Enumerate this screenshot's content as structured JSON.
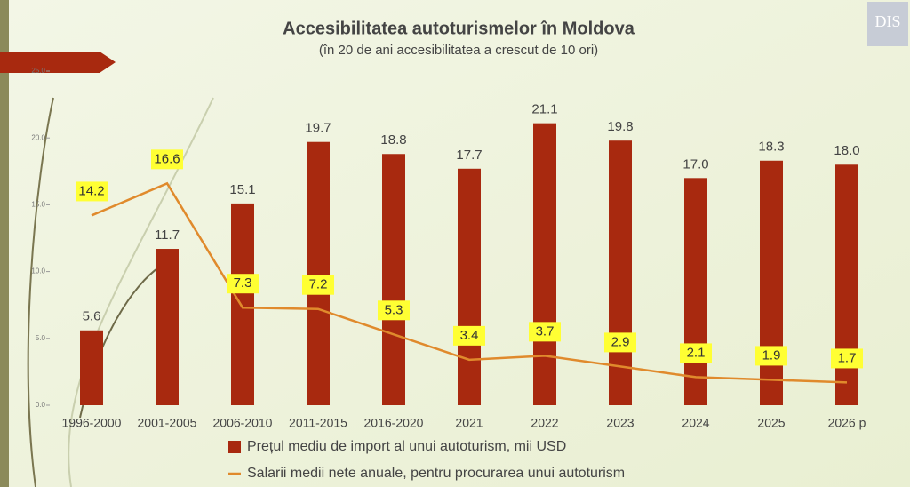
{
  "logo": "DIS",
  "chart_data": {
    "type": "bar",
    "title": "Accesibilitatea autoturismelor în Moldova",
    "subtitle": "(în 20 de ani accesibilitatea a crescut de 10 ori)",
    "categories": [
      "1996-2000",
      "2001-2005",
      "2006-2010",
      "2011-2015",
      "2016-2020",
      "2021",
      "2022",
      "2023",
      "2024",
      "2025",
      "2026 p"
    ],
    "series": [
      {
        "name": "Prețul mediu de import al unui autoturism, mii USD",
        "type": "bar",
        "color": "#a8290f",
        "values": [
          5.6,
          11.7,
          15.1,
          19.7,
          18.8,
          17.7,
          21.1,
          19.8,
          17.0,
          18.3,
          18.0
        ],
        "value_labels": [
          "5.6",
          "11.7",
          "15.1",
          "19.7",
          "18.8",
          "17.7",
          "21.1",
          "19.8",
          "17.0",
          "18.3",
          "18.0"
        ]
      },
      {
        "name": "Salarii medii nete anuale, pentru procurarea unui autoturism",
        "type": "line",
        "color": "#e08a2c",
        "values": [
          14.2,
          16.6,
          7.3,
          7.2,
          5.3,
          3.4,
          3.7,
          2.9,
          2.1,
          1.9,
          1.7
        ]
      }
    ],
    "ylim": [
      0,
      25
    ],
    "yticks": [
      {
        "value": 0,
        "label": "0.0"
      },
      {
        "value": 5,
        "label": "5.0"
      },
      {
        "value": 10,
        "label": "10.0"
      },
      {
        "value": 15,
        "label": "15.0"
      },
      {
        "value": 20,
        "label": "20.0"
      },
      {
        "value": 25,
        "label": "25.0"
      }
    ],
    "legend": "bottom"
  }
}
